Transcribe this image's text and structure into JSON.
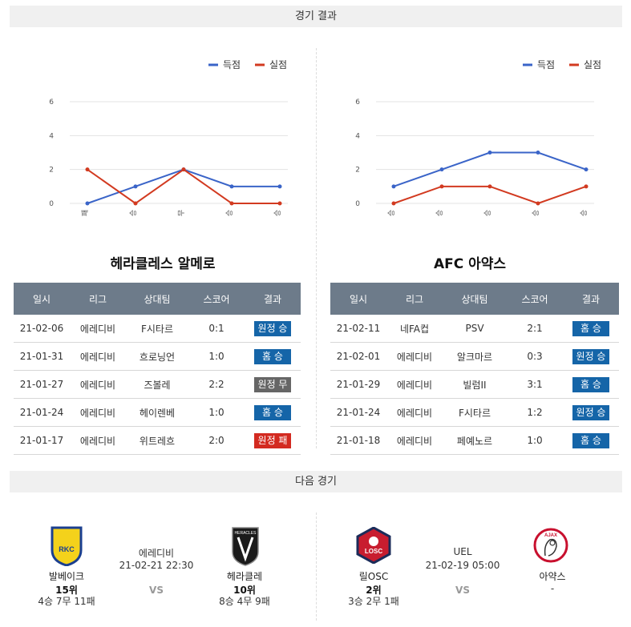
{
  "sections": {
    "results_title": "경기 결과",
    "next_title": "다음 경기"
  },
  "legend": {
    "goals": "득점",
    "conceded": "실점"
  },
  "colors": {
    "goals": "#3a64c8",
    "conceded": "#d23a20"
  },
  "charts": [
    {
      "y_ticks": [
        "6",
        "4",
        "2",
        "0"
      ],
      "ylim": [
        0,
        6
      ],
      "categories": [
        "패",
        "승",
        "무",
        "승",
        "승"
      ],
      "goals": [
        0,
        1,
        2,
        1,
        1
      ],
      "conceded": [
        2,
        0,
        2,
        0,
        0
      ]
    },
    {
      "y_ticks": [
        "6",
        "4",
        "2",
        "0"
      ],
      "ylim": [
        0,
        6
      ],
      "categories": [
        "승",
        "승",
        "승",
        "승",
        "승"
      ],
      "goals": [
        1,
        2,
        3,
        3,
        2
      ],
      "conceded": [
        0,
        1,
        1,
        0,
        1
      ]
    }
  ],
  "chart_data": [
    {
      "type": "line",
      "categories": [
        "패",
        "승",
        "무",
        "승",
        "승"
      ],
      "series": [
        {
          "name": "득점",
          "values": [
            0,
            1,
            2,
            1,
            1
          ]
        },
        {
          "name": "실점",
          "values": [
            2,
            0,
            2,
            0,
            0
          ]
        }
      ],
      "ylim": [
        0,
        6
      ],
      "yticks": [
        0,
        2,
        4,
        6
      ],
      "grid": true,
      "legend": "top-right"
    },
    {
      "type": "line",
      "categories": [
        "승",
        "승",
        "승",
        "승",
        "승"
      ],
      "series": [
        {
          "name": "득점",
          "values": [
            1,
            2,
            3,
            3,
            2
          ]
        },
        {
          "name": "실점",
          "values": [
            0,
            1,
            1,
            0,
            1
          ]
        }
      ],
      "ylim": [
        0,
        6
      ],
      "yticks": [
        0,
        2,
        4,
        6
      ],
      "grid": true,
      "legend": "top-right"
    }
  ],
  "teams": [
    {
      "title": "헤라클레스 알메로",
      "headers": [
        "일시",
        "리그",
        "상대팀",
        "스코어",
        "결과"
      ],
      "rows": [
        {
          "date": "21-02-06",
          "league": "에레디비",
          "opponent": "F시타르",
          "score": "0:1",
          "result": "원정 승",
          "color": "blue"
        },
        {
          "date": "21-01-31",
          "league": "에레디비",
          "opponent": "흐로닝언",
          "score": "1:0",
          "result": "홈 승",
          "color": "blue"
        },
        {
          "date": "21-01-27",
          "league": "에레디비",
          "opponent": "즈볼레",
          "score": "2:2",
          "result": "원정 무",
          "color": "gray"
        },
        {
          "date": "21-01-24",
          "league": "에레디비",
          "opponent": "헤이렌베",
          "score": "1:0",
          "result": "홈 승",
          "color": "blue"
        },
        {
          "date": "21-01-17",
          "league": "에레디비",
          "opponent": "위트레흐",
          "score": "2:0",
          "result": "원정 패",
          "color": "red"
        }
      ]
    },
    {
      "title": "AFC 아약스",
      "headers": [
        "일시",
        "리그",
        "상대팀",
        "스코어",
        "결과"
      ],
      "rows": [
        {
          "date": "21-02-11",
          "league": "네FA컵",
          "opponent": "PSV",
          "score": "2:1",
          "result": "홈 승",
          "color": "blue"
        },
        {
          "date": "21-02-01",
          "league": "에레디비",
          "opponent": "알크마르",
          "score": "0:3",
          "result": "원정 승",
          "color": "blue"
        },
        {
          "date": "21-01-29",
          "league": "에레디비",
          "opponent": "빌럼II",
          "score": "3:1",
          "result": "홈 승",
          "color": "blue"
        },
        {
          "date": "21-01-24",
          "league": "에레디비",
          "opponent": "F시타르",
          "score": "1:2",
          "result": "원정 승",
          "color": "blue"
        },
        {
          "date": "21-01-18",
          "league": "에레디비",
          "opponent": "페예노르",
          "score": "1:0",
          "result": "홈 승",
          "color": "blue"
        }
      ]
    }
  ],
  "next_matches": [
    {
      "home": {
        "name": "발베이크",
        "rank": "15위",
        "record": "4승 7무 11패",
        "logo": "rkc-shield-icon",
        "logo_text": "RKC"
      },
      "league": "에레디비",
      "datetime": "21-02-21 22:30",
      "vs": "VS",
      "away": {
        "name": "헤라클레",
        "rank": "10위",
        "record": "8승 4무 9패",
        "logo": "heracles-shield-icon",
        "logo_text": "HERACLES"
      }
    },
    {
      "home": {
        "name": "릴OSC",
        "rank": "2위",
        "record": "3승 2무 1패",
        "logo": "losc-shield-icon",
        "logo_text": "LOSC"
      },
      "league": "UEL",
      "datetime": "21-02-19 05:00",
      "vs": "VS",
      "away": {
        "name": "아약스",
        "rank": "",
        "record": "-",
        "logo": "ajax-crest-icon",
        "logo_text": "AJAX"
      }
    }
  ]
}
